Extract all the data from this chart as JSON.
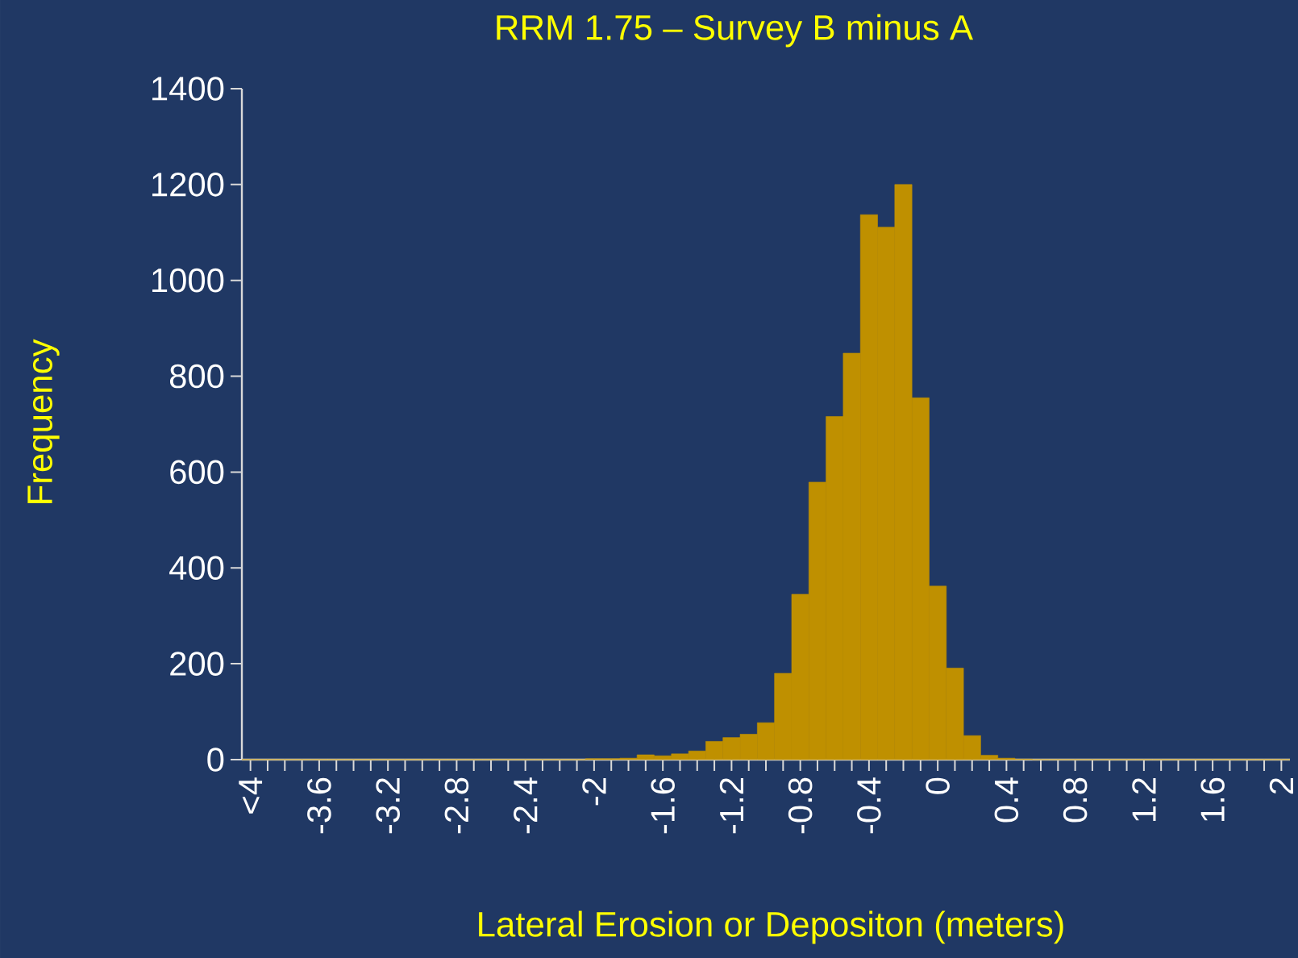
{
  "chart_data": {
    "type": "bar",
    "title": "RRM 1.75 – Survey B minus A",
    "xlabel": "Lateral Erosion or Depositon (meters)",
    "ylabel": "Frequency",
    "categories": [
      "<4",
      null,
      null,
      null,
      "-3.6",
      null,
      null,
      null,
      "-3.2",
      null,
      null,
      null,
      "-2.8",
      null,
      null,
      null,
      "-2.4",
      null,
      null,
      null,
      "-2",
      null,
      null,
      null,
      "-1.6",
      null,
      null,
      null,
      "-1.2",
      null,
      null,
      null,
      "-0.8",
      null,
      null,
      null,
      "-0.4",
      null,
      null,
      null,
      "0",
      null,
      null,
      null,
      "0.4",
      null,
      null,
      null,
      "0.8",
      null,
      null,
      null,
      "1.2",
      null,
      null,
      null,
      "1.6",
      null,
      null,
      null,
      "2"
    ],
    "values": [
      0,
      0,
      0,
      0,
      0,
      0,
      0,
      0,
      0,
      0,
      0,
      0,
      0,
      0,
      0,
      0,
      0,
      0,
      0,
      0,
      2,
      2,
      3,
      10,
      8,
      12,
      18,
      38,
      46,
      53,
      77,
      180,
      345,
      579,
      716,
      848,
      1137,
      1111,
      1200,
      755,
      362,
      191,
      50,
      9,
      3,
      1,
      0,
      0,
      0,
      0,
      0,
      0,
      0,
      0,
      0,
      0,
      0,
      0,
      0,
      0,
      0
    ],
    "color": "#bf9000",
    "ylim": [
      0,
      1400
    ],
    "yticks": [
      0,
      200,
      400,
      600,
      800,
      1000,
      1200,
      1400
    ]
  }
}
